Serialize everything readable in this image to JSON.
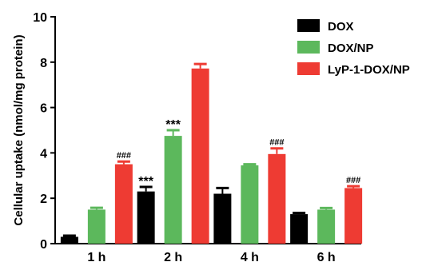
{
  "chart_data": {
    "type": "bar",
    "title": "",
    "xlabel": "",
    "ylabel": "Cellular uptake (nmol/mg protein)",
    "ylim": [
      0,
      10
    ],
    "yticks": [
      "0",
      "2",
      "4",
      "6",
      "8",
      "10"
    ],
    "categories": [
      "1 h",
      "2 h",
      "4 h",
      "6 h"
    ],
    "grid": false,
    "legend_position": "top-right",
    "series": [
      {
        "name": "DOX",
        "color": "#000000",
        "values": [
          0.3,
          2.3,
          2.2,
          1.3
        ],
        "errors": [
          0.05,
          0.2,
          0.25,
          0.05
        ],
        "annotations": [
          "",
          "***",
          "",
          ""
        ]
      },
      {
        "name": "DOX/NP",
        "color": "#5CB85C",
        "values": [
          1.5,
          4.75,
          3.45,
          1.5
        ],
        "errors": [
          0.08,
          0.25,
          0.05,
          0.07
        ],
        "annotations": [
          "",
          "***",
          "",
          ""
        ]
      },
      {
        "name": "LyP-1-DOX/NP",
        "color": "#EE3B33",
        "values": [
          3.5,
          7.72,
          3.95,
          2.45
        ],
        "errors": [
          0.12,
          0.2,
          0.25,
          0.08
        ],
        "annotations": [
          "###",
          "",
          "###",
          "###"
        ]
      }
    ]
  }
}
